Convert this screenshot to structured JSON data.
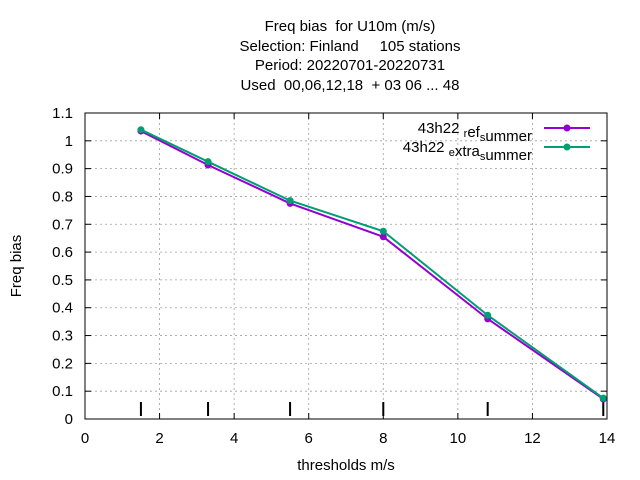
{
  "titles": {
    "line1": "Freq bias  for U10m (m/s)",
    "line2": "Selection: Finland     105 stations",
    "line3": "Period: 20220701-20220731",
    "line4": "Used  00,06,12,18  + 03 06 ... 48"
  },
  "colors": {
    "series1": "#9400d3",
    "series2": "#009e73",
    "grid": "#a0a0a0",
    "axis": "#000000"
  },
  "chart_data": {
    "type": "line",
    "title": "Freq bias  for U10m (m/s)",
    "xlabel": "thresholds m/s",
    "ylabel": "Freq bias",
    "xlim": [
      0,
      14
    ],
    "ylim": [
      0,
      1.1
    ],
    "xticks": [
      "0",
      "2",
      "4",
      "6",
      "8",
      "10",
      "12",
      "14"
    ],
    "yticks": [
      "0",
      "0.1",
      "0.2",
      "0.3",
      "0.4",
      "0.5",
      "0.6",
      "0.7",
      "0.8",
      "0.9",
      "1",
      "1.1"
    ],
    "grid": true,
    "legend_position": "top-right",
    "threshold_markers": [
      1.5,
      3.3,
      5.5,
      8,
      10.8,
      13.9
    ],
    "series": [
      {
        "name_parts": [
          [
            "43h22 ",
            false
          ],
          [
            "r",
            true
          ],
          [
            "ef",
            false
          ],
          [
            "s",
            true
          ],
          [
            "ummer",
            false
          ]
        ],
        "x": [
          1.5,
          3.3,
          5.5,
          8,
          10.8,
          13.9
        ],
        "y": [
          1.035,
          0.913,
          0.775,
          0.655,
          0.36,
          0.072
        ]
      },
      {
        "name_parts": [
          [
            "43h22 ",
            false
          ],
          [
            "e",
            true
          ],
          [
            "xtra",
            false
          ],
          [
            "s",
            true
          ],
          [
            "ummer",
            false
          ]
        ],
        "x": [
          1.5,
          3.3,
          5.5,
          8,
          10.8,
          13.9
        ],
        "y": [
          1.04,
          0.925,
          0.785,
          0.675,
          0.373,
          0.075
        ]
      }
    ]
  }
}
